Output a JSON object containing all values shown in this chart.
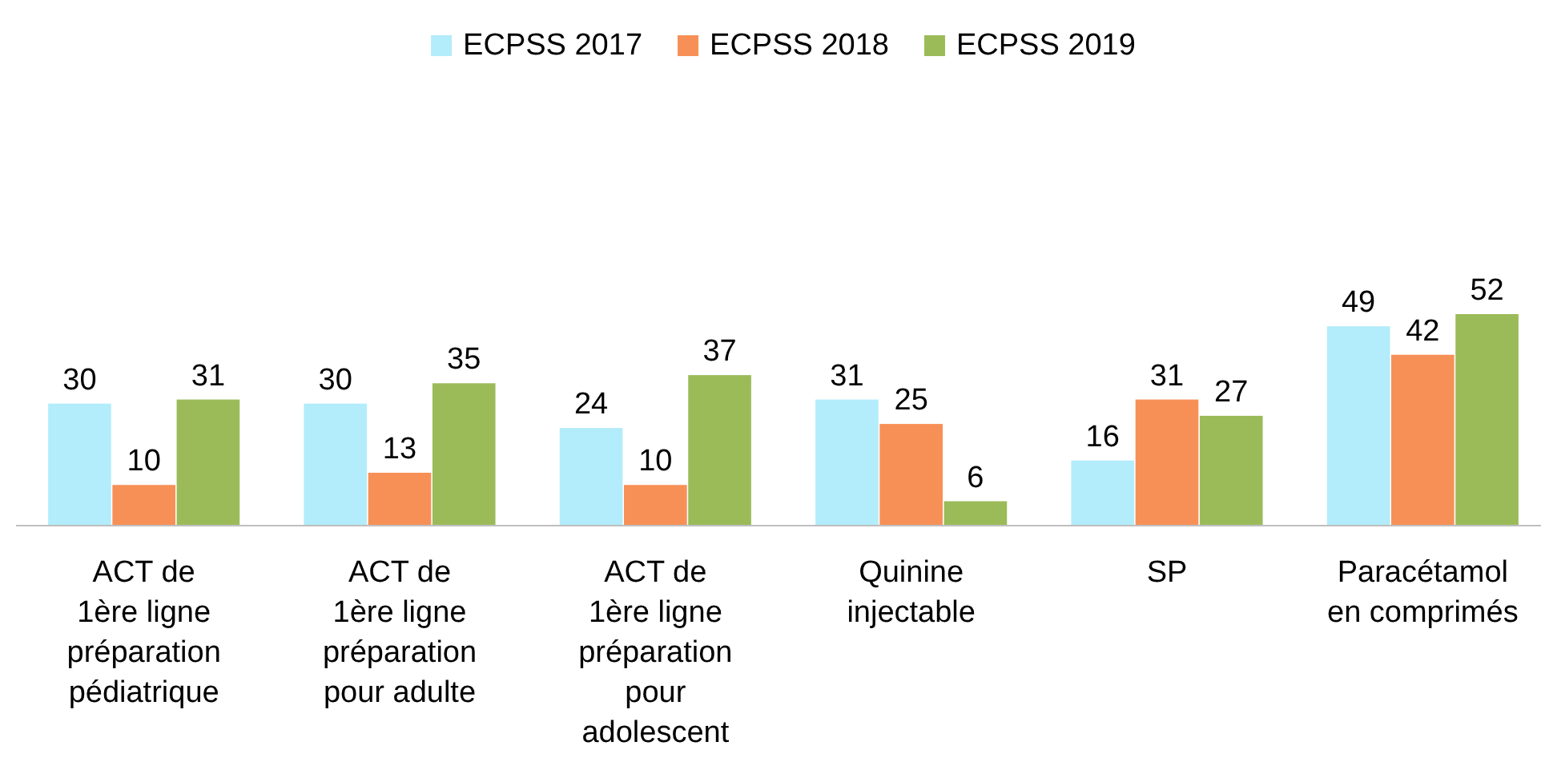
{
  "chart_data": {
    "type": "bar",
    "categories": [
      "ACT de\n1ère ligne\npréparation\npédiatrique",
      "ACT de\n1ère ligne\npréparation\npour adulte",
      "ACT de\n1ère ligne\npréparation\npour\nadolescent",
      "Quinine\ninjectable",
      "SP",
      "Paracétamol\nen comprimés"
    ],
    "series": [
      {
        "name": "ECPSS 2017",
        "color": "#b3ecfa",
        "values": [
          30,
          30,
          24,
          31,
          16,
          49
        ]
      },
      {
        "name": "ECPSS 2018",
        "color": "#f79057",
        "values": [
          10,
          13,
          10,
          25,
          31,
          42
        ]
      },
      {
        "name": "ECPSS 2019",
        "color": "#9bbb59",
        "values": [
          31,
          35,
          37,
          6,
          27,
          52
        ]
      }
    ],
    "data_labels": true,
    "legend": "top"
  }
}
